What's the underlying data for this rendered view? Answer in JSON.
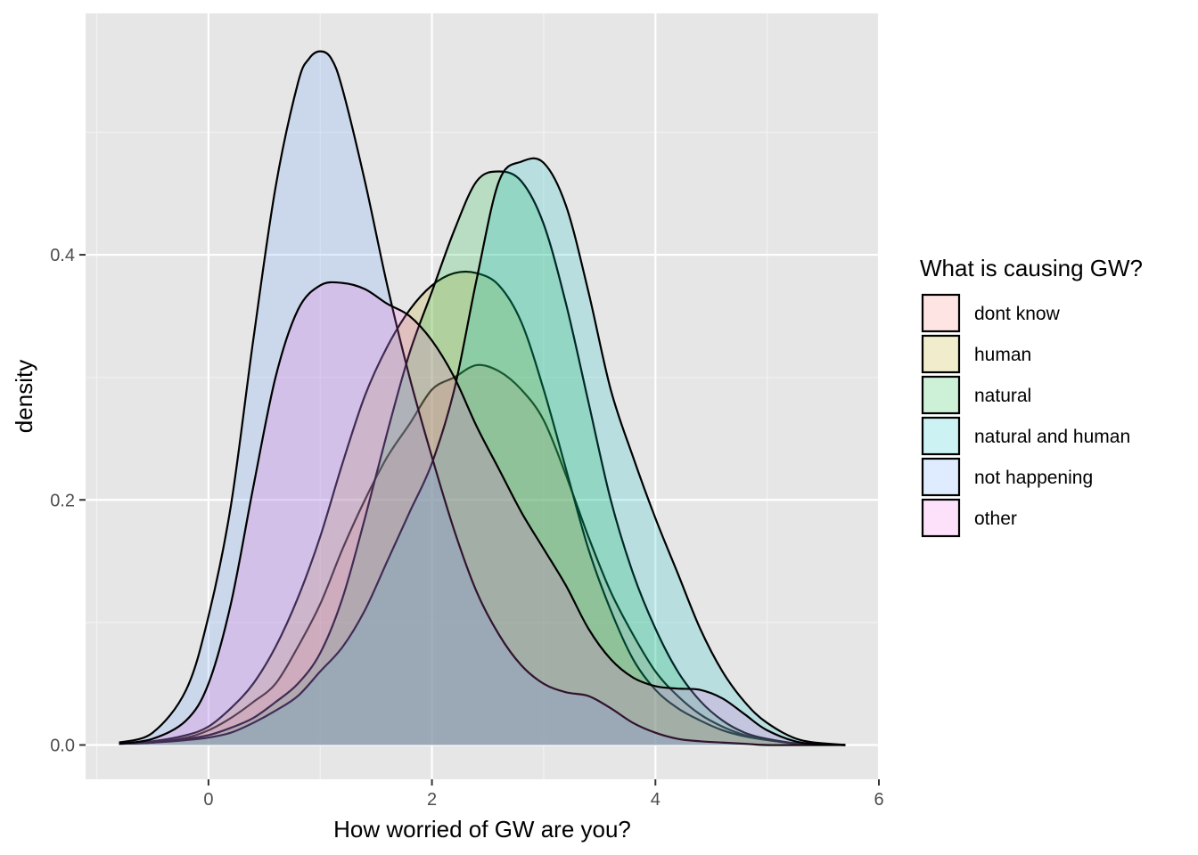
{
  "chart_data": {
    "type": "area",
    "subtype": "density",
    "xlabel": "How worried of GW are you?",
    "ylabel": "density",
    "xlim": [
      -1.1,
      6.0
    ],
    "ylim": [
      -0.028,
      0.597
    ],
    "x_ticks": [
      0,
      2,
      4,
      6
    ],
    "x_tick_labels": [
      "0",
      "2",
      "4",
      "6"
    ],
    "y_ticks": [
      0.0,
      0.2,
      0.4
    ],
    "y_tick_labels": [
      "0.0",
      "0.2",
      "0.4"
    ],
    "grid": true,
    "legend": {
      "title": "What is causing GW?",
      "position": "right"
    },
    "series": [
      {
        "name": "dont know",
        "color": "#F8766D",
        "x": [
          -0.8,
          -0.5,
          -0.2,
          0.0,
          0.2,
          0.4,
          0.6,
          0.8,
          1.0,
          1.2,
          1.4,
          1.6,
          1.8,
          2.0,
          2.2,
          2.4,
          2.6,
          2.8,
          3.0,
          3.2,
          3.4,
          3.6,
          3.8,
          4.0,
          4.2,
          4.4,
          4.6,
          4.8,
          5.0,
          5.3,
          5.7
        ],
        "y": [
          0.001,
          0.002,
          0.006,
          0.012,
          0.022,
          0.035,
          0.05,
          0.08,
          0.115,
          0.16,
          0.2,
          0.235,
          0.262,
          0.29,
          0.3,
          0.31,
          0.305,
          0.29,
          0.265,
          0.22,
          0.17,
          0.125,
          0.09,
          0.06,
          0.04,
          0.025,
          0.015,
          0.008,
          0.004,
          0.001,
          0.0
        ]
      },
      {
        "name": "human",
        "color": "#B79F00",
        "x": [
          -0.8,
          -0.5,
          -0.2,
          0.0,
          0.2,
          0.4,
          0.6,
          0.8,
          1.0,
          1.2,
          1.4,
          1.6,
          1.8,
          2.0,
          2.2,
          2.4,
          2.6,
          2.8,
          3.0,
          3.2,
          3.4,
          3.6,
          3.8,
          4.0,
          4.2,
          4.4,
          4.6,
          4.8,
          5.0,
          5.3,
          5.7
        ],
        "y": [
          0.001,
          0.003,
          0.008,
          0.015,
          0.03,
          0.05,
          0.08,
          0.12,
          0.17,
          0.23,
          0.285,
          0.325,
          0.355,
          0.375,
          0.385,
          0.385,
          0.375,
          0.345,
          0.29,
          0.225,
          0.16,
          0.11,
          0.07,
          0.045,
          0.03,
          0.02,
          0.012,
          0.007,
          0.004,
          0.001,
          0.0
        ]
      },
      {
        "name": "natural",
        "color": "#00BA38",
        "x": [
          -0.8,
          -0.5,
          -0.2,
          0.0,
          0.2,
          0.4,
          0.6,
          0.8,
          1.0,
          1.2,
          1.4,
          1.6,
          1.8,
          2.0,
          2.2,
          2.4,
          2.6,
          2.8,
          3.0,
          3.2,
          3.4,
          3.6,
          3.8,
          4.0,
          4.2,
          4.4,
          4.6,
          4.8,
          5.0,
          5.3,
          5.7
        ],
        "y": [
          0.001,
          0.002,
          0.005,
          0.008,
          0.014,
          0.022,
          0.035,
          0.05,
          0.075,
          0.12,
          0.185,
          0.255,
          0.32,
          0.37,
          0.42,
          0.46,
          0.468,
          0.46,
          0.425,
          0.36,
          0.28,
          0.2,
          0.14,
          0.095,
          0.06,
          0.036,
          0.02,
          0.01,
          0.005,
          0.001,
          0.0
        ]
      },
      {
        "name": "natural and human",
        "color": "#00BFC4",
        "x": [
          -0.8,
          -0.5,
          -0.2,
          0.0,
          0.2,
          0.4,
          0.6,
          0.8,
          1.0,
          1.2,
          1.4,
          1.6,
          1.8,
          2.0,
          2.2,
          2.4,
          2.6,
          2.8,
          3.0,
          3.2,
          3.4,
          3.6,
          3.8,
          4.0,
          4.2,
          4.4,
          4.6,
          4.8,
          5.0,
          5.3,
          5.7
        ],
        "y": [
          0.001,
          0.002,
          0.004,
          0.006,
          0.01,
          0.018,
          0.028,
          0.04,
          0.06,
          0.08,
          0.11,
          0.15,
          0.19,
          0.23,
          0.29,
          0.38,
          0.46,
          0.476,
          0.475,
          0.44,
          0.37,
          0.29,
          0.235,
          0.185,
          0.14,
          0.095,
          0.06,
          0.035,
          0.018,
          0.004,
          0.0
        ]
      },
      {
        "name": "not happening",
        "color": "#619CFF",
        "x": [
          -0.8,
          -0.5,
          -0.2,
          0.0,
          0.2,
          0.4,
          0.6,
          0.8,
          0.9,
          1.0,
          1.1,
          1.2,
          1.4,
          1.6,
          1.8,
          2.0,
          2.2,
          2.4,
          2.6,
          2.8,
          3.0,
          3.2,
          3.4,
          3.6,
          3.8,
          4.0,
          4.2,
          4.4,
          4.6,
          4.8,
          5.0,
          5.3,
          5.7
        ],
        "y": [
          0.002,
          0.01,
          0.045,
          0.105,
          0.195,
          0.33,
          0.455,
          0.54,
          0.56,
          0.566,
          0.56,
          0.535,
          0.46,
          0.375,
          0.3,
          0.235,
          0.175,
          0.125,
          0.09,
          0.065,
          0.05,
          0.043,
          0.04,
          0.03,
          0.018,
          0.01,
          0.005,
          0.003,
          0.002,
          0.001,
          0.0,
          0.0,
          0.0
        ]
      },
      {
        "name": "other",
        "color": "#F564E3",
        "x": [
          -0.8,
          -0.5,
          -0.2,
          0.0,
          0.2,
          0.4,
          0.6,
          0.8,
          1.0,
          1.2,
          1.4,
          1.6,
          1.8,
          2.0,
          2.2,
          2.4,
          2.6,
          2.8,
          3.0,
          3.2,
          3.4,
          3.6,
          3.8,
          4.0,
          4.2,
          4.4,
          4.6,
          4.8,
          5.0,
          5.3,
          5.7
        ],
        "y": [
          0.001,
          0.005,
          0.02,
          0.05,
          0.115,
          0.21,
          0.3,
          0.355,
          0.375,
          0.377,
          0.372,
          0.36,
          0.35,
          0.33,
          0.3,
          0.26,
          0.225,
          0.19,
          0.16,
          0.13,
          0.095,
          0.07,
          0.055,
          0.048,
          0.046,
          0.045,
          0.038,
          0.025,
          0.012,
          0.002,
          0.0
        ]
      }
    ]
  }
}
